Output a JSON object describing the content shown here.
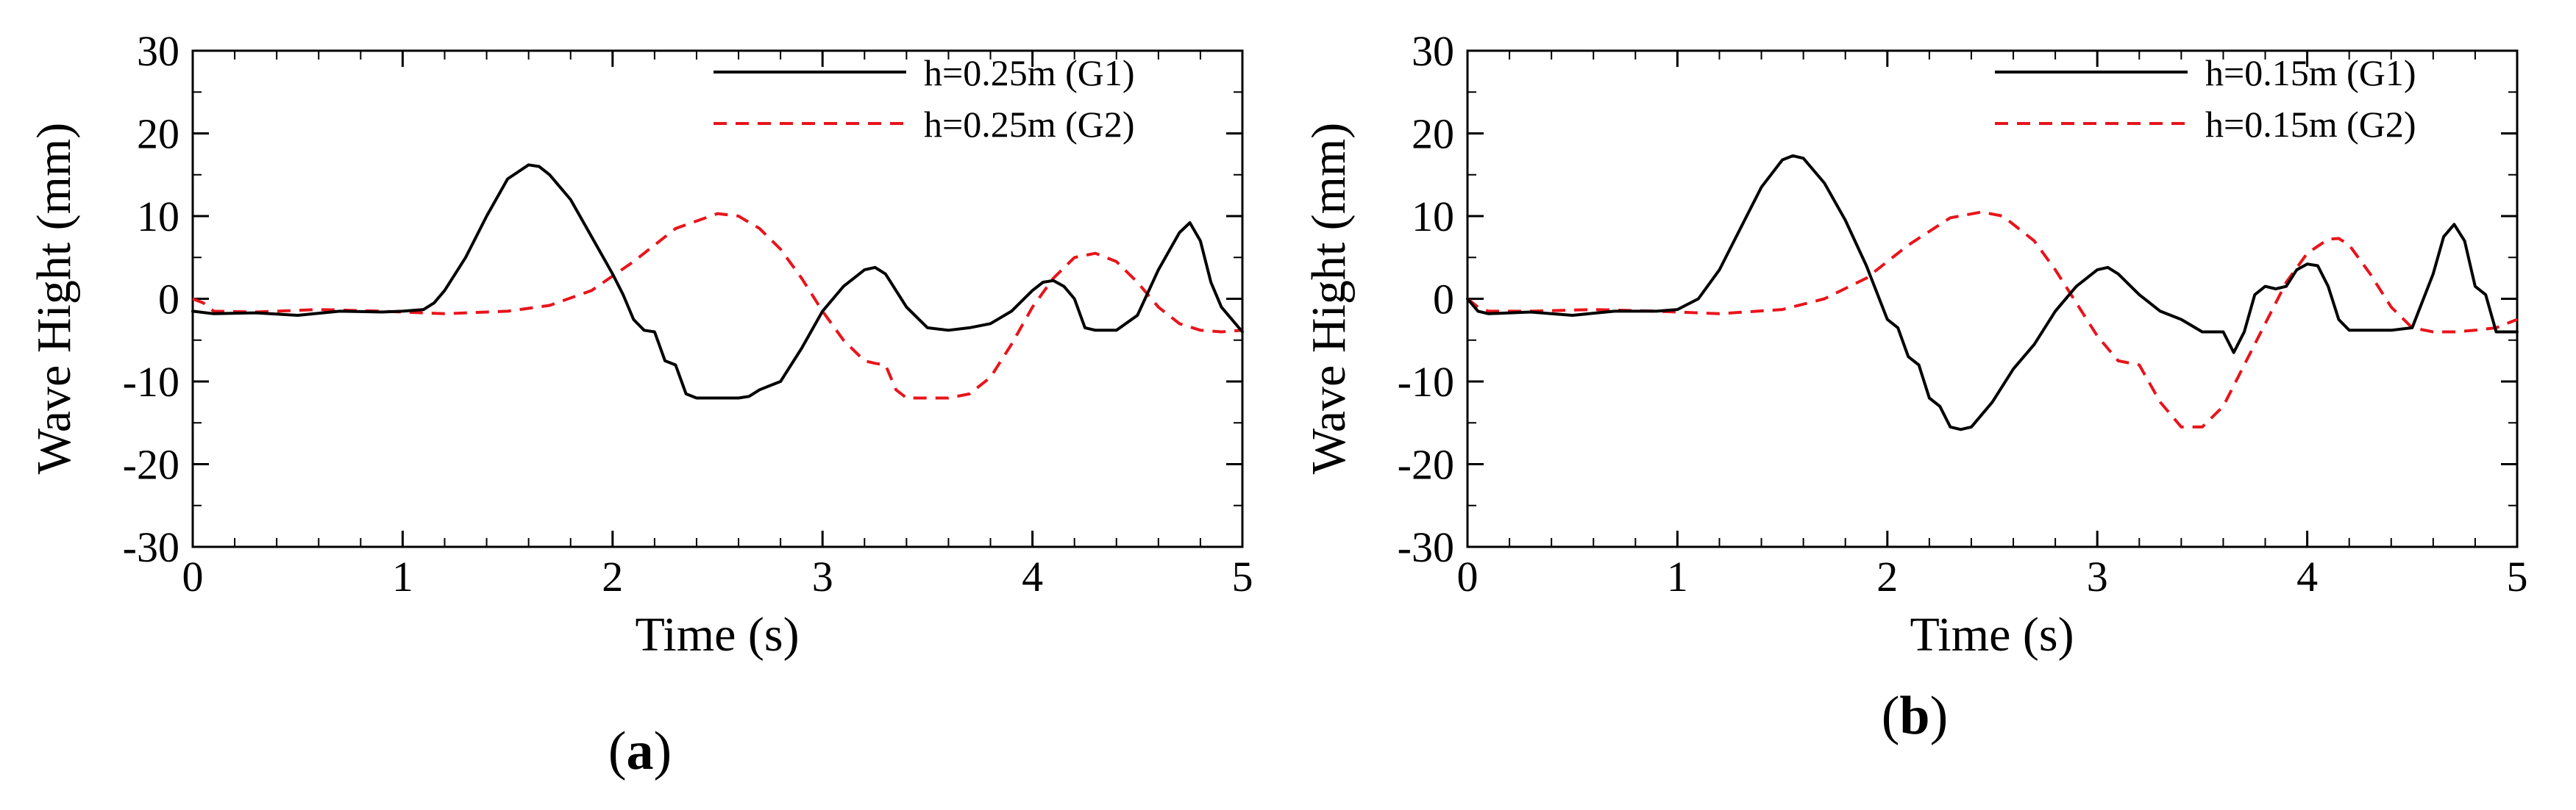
{
  "chart_data": [
    {
      "panel_label": "a",
      "type": "line",
      "xlabel": "Time (s)",
      "ylabel": "Wave Hight (mm)",
      "xlim": [
        0,
        5
      ],
      "ylim": [
        -30,
        30
      ],
      "xticks": [
        0,
        1,
        2,
        3,
        4,
        5
      ],
      "yticks": [
        -30,
        -20,
        -10,
        0,
        10,
        20,
        30
      ],
      "grid": false,
      "legend_position": "top-right",
      "series": [
        {
          "name": "h=0.25m (G1)",
          "color": "#000000",
          "style": "solid",
          "x": [
            0,
            0.1,
            0.3,
            0.5,
            0.7,
            0.9,
            1.0,
            1.1,
            1.15,
            1.2,
            1.3,
            1.4,
            1.5,
            1.6,
            1.65,
            1.7,
            1.8,
            1.9,
            2.0,
            2.05,
            2.1,
            2.15,
            2.2,
            2.25,
            2.3,
            2.35,
            2.4,
            2.5,
            2.6,
            2.65,
            2.7,
            2.75,
            2.8,
            2.9,
            3.0,
            3.1,
            3.2,
            3.25,
            3.3,
            3.4,
            3.5,
            3.6,
            3.7,
            3.8,
            3.9,
            4.0,
            4.05,
            4.1,
            4.15,
            4.2,
            4.25,
            4.3,
            4.4,
            4.5,
            4.6,
            4.7,
            4.75,
            4.8,
            4.85,
            4.9,
            5.0
          ],
          "y": [
            -1.5,
            -1.8,
            -1.7,
            -2.0,
            -1.5,
            -1.6,
            -1.5,
            -1.3,
            -0.5,
            1.0,
            5.0,
            10.0,
            14.5,
            16.2,
            16.0,
            15.0,
            12.0,
            7.5,
            3.0,
            0.5,
            -2.5,
            -3.8,
            -4.0,
            -7.5,
            -8.0,
            -11.5,
            -12.0,
            -12.0,
            -12.0,
            -11.8,
            -11.0,
            -10.5,
            -10.0,
            -6.0,
            -1.5,
            1.5,
            3.5,
            3.8,
            3.0,
            -1.0,
            -3.5,
            -3.8,
            -3.5,
            -3.0,
            -1.5,
            1.0,
            2.0,
            2.2,
            1.5,
            0.0,
            -3.5,
            -3.8,
            -3.8,
            -2.0,
            3.5,
            8.0,
            9.2,
            7.0,
            2.0,
            -1.0,
            -4.0
          ]
        },
        {
          "name": "h=0.25m (G2)",
          "color": "#e8141b",
          "style": "dashed",
          "x": [
            0,
            0.05,
            0.1,
            0.3,
            0.6,
            0.9,
            1.2,
            1.5,
            1.7,
            1.9,
            2.1,
            2.3,
            2.5,
            2.6,
            2.7,
            2.8,
            2.9,
            3.0,
            3.1,
            3.2,
            3.25,
            3.3,
            3.35,
            3.4,
            3.6,
            3.7,
            3.8,
            3.9,
            4.0,
            4.1,
            4.2,
            4.3,
            4.4,
            4.5,
            4.6,
            4.7,
            4.8,
            4.9,
            5.0
          ],
          "y": [
            0.0,
            -0.5,
            -1.5,
            -1.6,
            -1.3,
            -1.5,
            -1.8,
            -1.5,
            -0.8,
            1.0,
            4.5,
            8.5,
            10.3,
            10.0,
            8.5,
            6.0,
            2.5,
            -1.5,
            -5.0,
            -7.5,
            -7.8,
            -8.0,
            -11.0,
            -12.0,
            -12.0,
            -11.5,
            -9.5,
            -5.5,
            -1.0,
            2.5,
            5.0,
            5.5,
            4.5,
            2.0,
            -1.0,
            -3.0,
            -3.8,
            -4.0,
            -3.8
          ]
        }
      ]
    },
    {
      "panel_label": "b",
      "type": "line",
      "xlabel": "Time (s)",
      "ylabel": "Wave Hight (mm)",
      "xlim": [
        0,
        5
      ],
      "ylim": [
        -30,
        30
      ],
      "xticks": [
        0,
        1,
        2,
        3,
        4,
        5
      ],
      "yticks": [
        -30,
        -20,
        -10,
        0,
        10,
        20,
        30
      ],
      "grid": false,
      "legend_position": "top-right",
      "series": [
        {
          "name": "h=0.15m (G1)",
          "color": "#000000",
          "style": "solid",
          "x": [
            0,
            0.05,
            0.1,
            0.3,
            0.5,
            0.7,
            0.9,
            1.0,
            1.1,
            1.2,
            1.3,
            1.4,
            1.5,
            1.55,
            1.6,
            1.7,
            1.8,
            1.9,
            2.0,
            2.05,
            2.1,
            2.15,
            2.2,
            2.25,
            2.3,
            2.35,
            2.4,
            2.5,
            2.6,
            2.7,
            2.8,
            2.9,
            3.0,
            3.05,
            3.1,
            3.2,
            3.3,
            3.4,
            3.5,
            3.6,
            3.65,
            3.7,
            3.75,
            3.8,
            3.85,
            3.9,
            3.95,
            4.0,
            4.05,
            4.1,
            4.15,
            4.2,
            4.3,
            4.4,
            4.5,
            4.6,
            4.65,
            4.7,
            4.75,
            4.8,
            4.85,
            4.9,
            5.0
          ],
          "y": [
            0.0,
            -1.5,
            -1.8,
            -1.6,
            -2.0,
            -1.5,
            -1.5,
            -1.3,
            0.0,
            3.5,
            8.5,
            13.5,
            16.8,
            17.3,
            17.0,
            14.0,
            9.5,
            4.0,
            -2.5,
            -3.5,
            -7.0,
            -8.0,
            -12.0,
            -13.0,
            -15.5,
            -15.8,
            -15.5,
            -12.5,
            -8.5,
            -5.5,
            -1.5,
            1.5,
            3.5,
            3.8,
            3.0,
            0.5,
            -1.5,
            -2.5,
            -4.0,
            -4.0,
            -6.5,
            -4.0,
            0.5,
            1.5,
            1.2,
            1.5,
            3.5,
            4.2,
            4.0,
            1.5,
            -2.5,
            -3.8,
            -3.8,
            -3.8,
            -3.5,
            3.0,
            7.5,
            9.0,
            7.0,
            1.5,
            0.5,
            -4.0,
            -4.0
          ]
        },
        {
          "name": "h=0.15m (G2)",
          "color": "#e8141b",
          "style": "dashed",
          "x": [
            0,
            0.05,
            0.1,
            0.3,
            0.6,
            0.9,
            1.2,
            1.5,
            1.7,
            1.9,
            2.1,
            2.3,
            2.45,
            2.55,
            2.7,
            2.8,
            2.9,
            3.0,
            3.1,
            3.2,
            3.3,
            3.4,
            3.5,
            3.6,
            3.7,
            3.8,
            3.9,
            4.0,
            4.1,
            4.15,
            4.2,
            4.3,
            4.4,
            4.5,
            4.6,
            4.7,
            4.8,
            4.9,
            5.0
          ],
          "y": [
            0.0,
            -1.0,
            -1.5,
            -1.5,
            -1.3,
            -1.5,
            -1.8,
            -1.3,
            0.0,
            2.5,
            6.5,
            9.8,
            10.5,
            10.0,
            7.0,
            3.5,
            -0.5,
            -4.5,
            -7.5,
            -8.0,
            -12.5,
            -15.5,
            -15.5,
            -13.0,
            -8.0,
            -3.0,
            2.0,
            5.5,
            7.2,
            7.3,
            6.5,
            3.0,
            -1.0,
            -3.5,
            -4.0,
            -4.0,
            -3.8,
            -3.5,
            -2.5
          ]
        }
      ]
    }
  ]
}
